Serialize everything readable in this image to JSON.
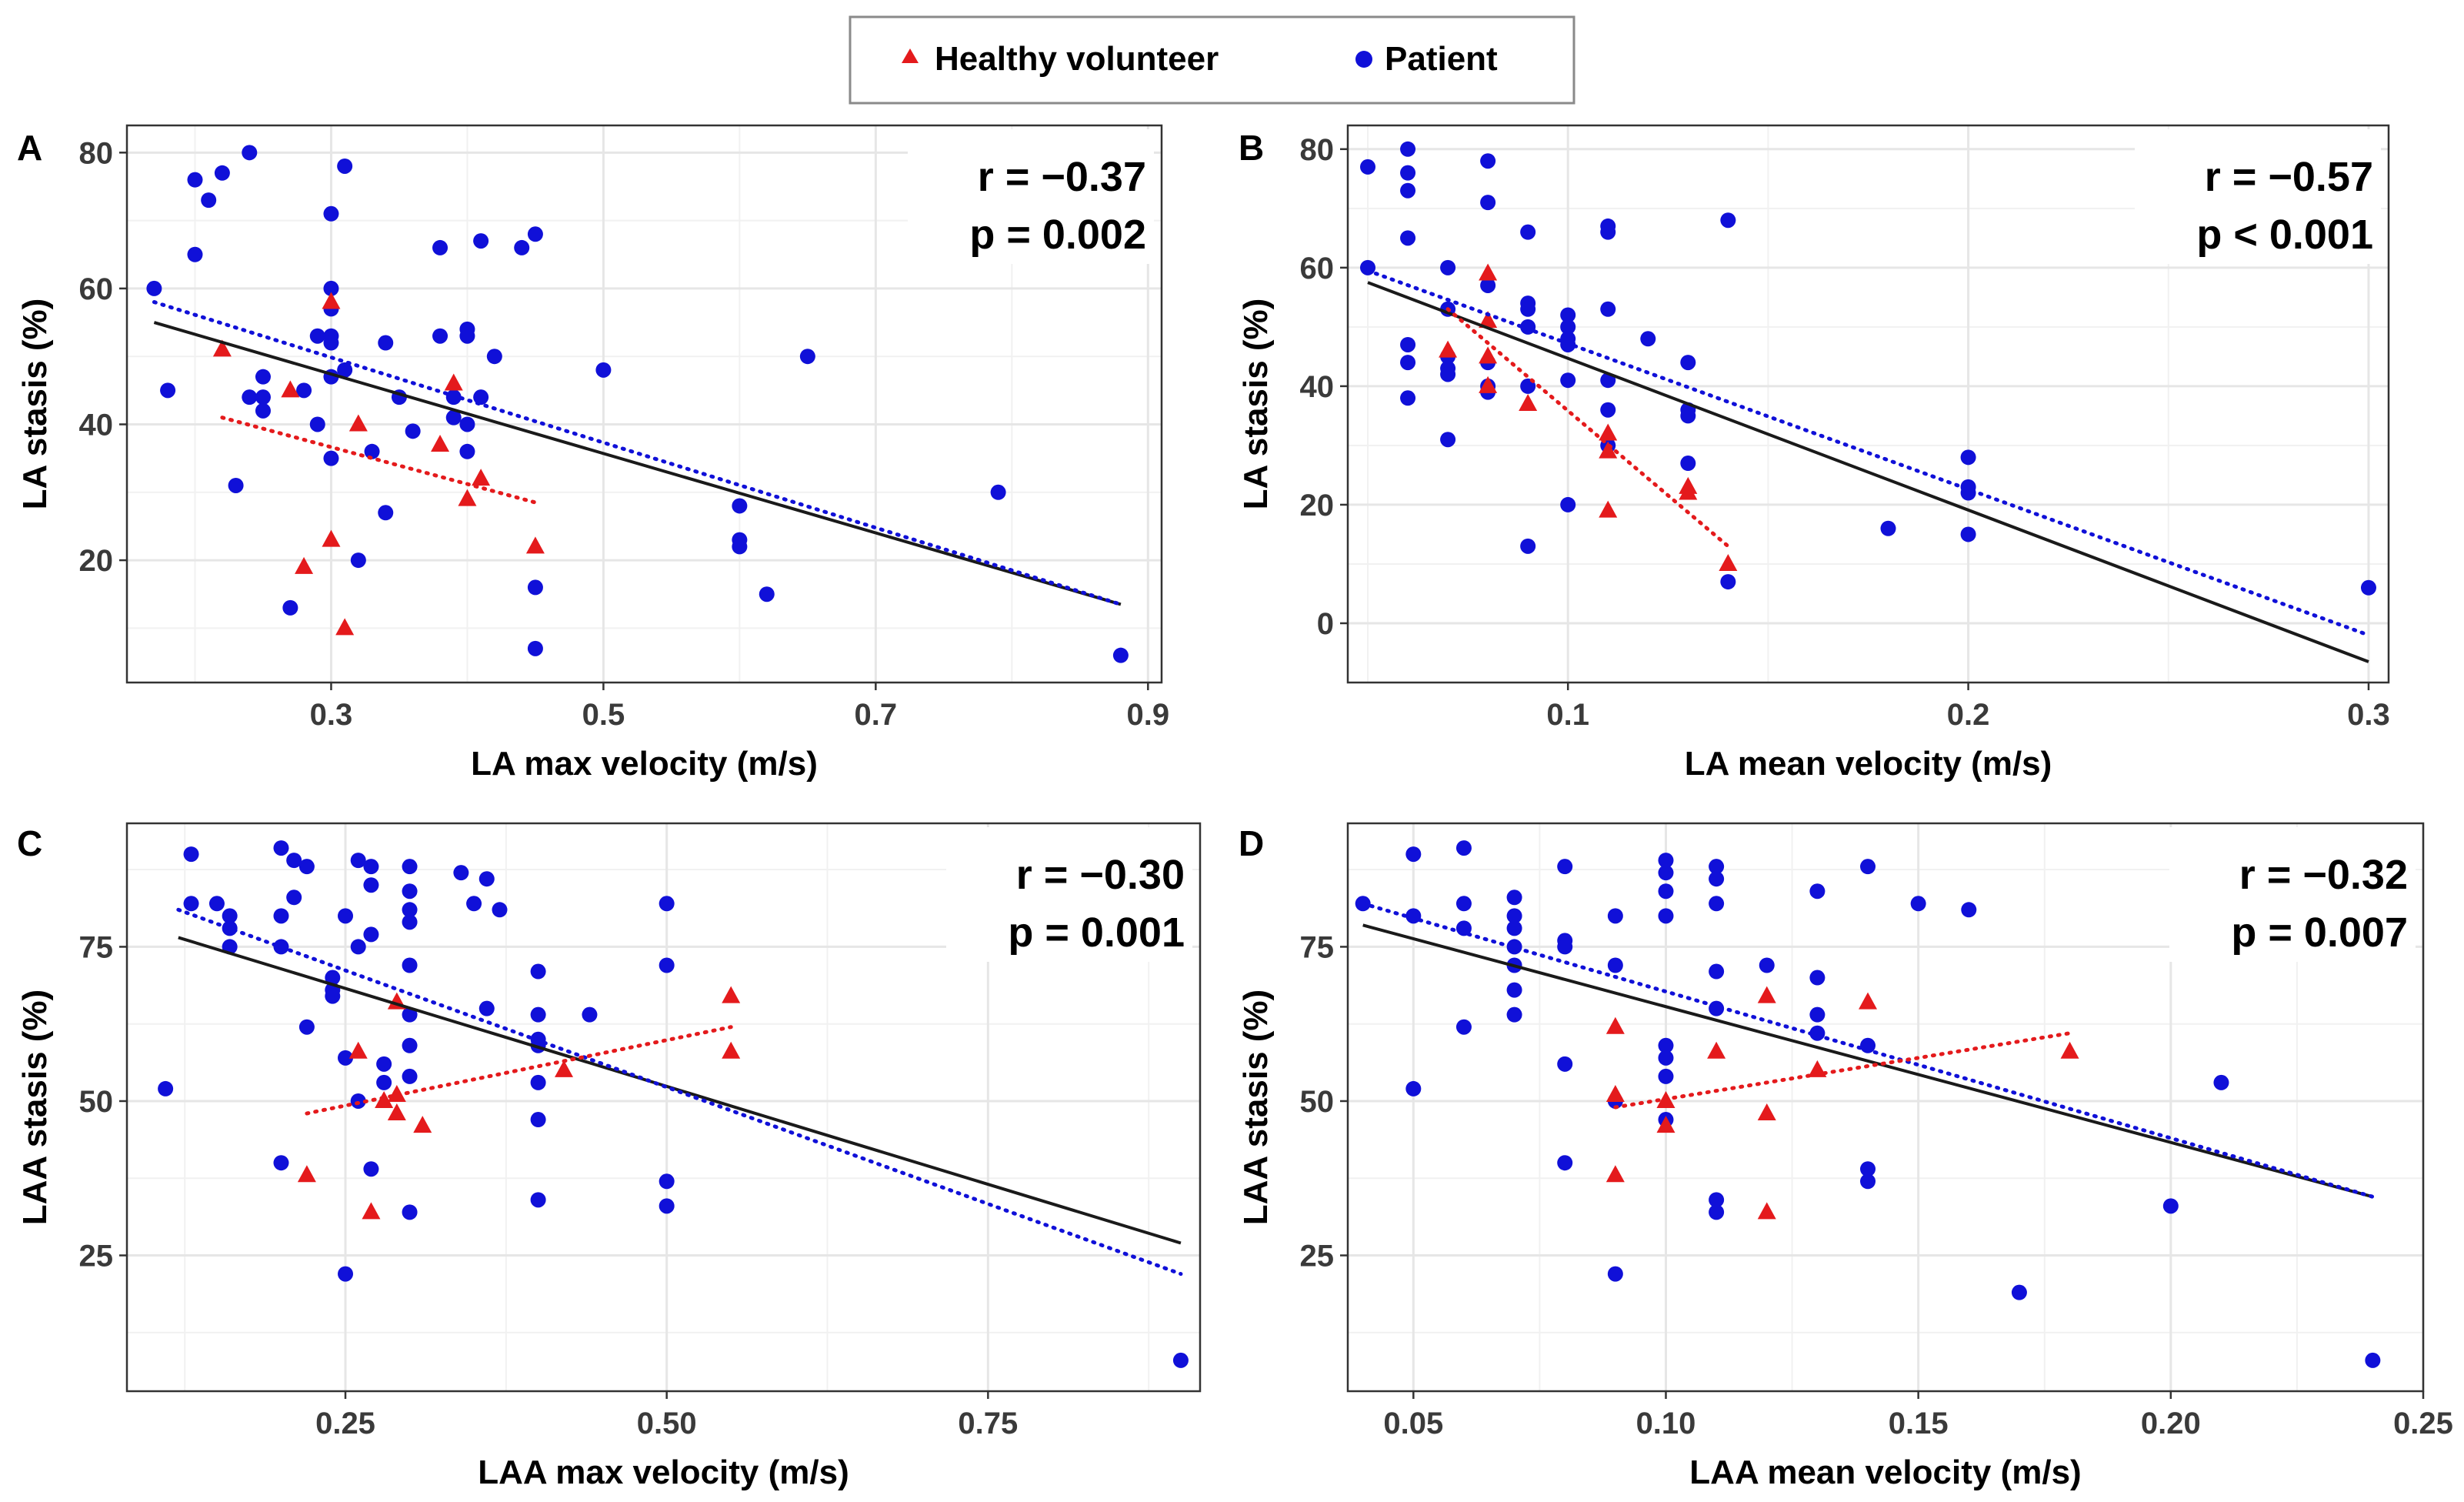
{
  "colors": {
    "healthy": "#e41a1c",
    "patient": "#1010d8",
    "overall_line": "#1a1a1a",
    "grid": "#e6e6e6",
    "panel_border": "#333333"
  },
  "legend": {
    "items": [
      {
        "key": "healthy",
        "label": "Healthy volunteer",
        "marker": "triangle"
      },
      {
        "key": "patient",
        "label": "Patient",
        "marker": "circle"
      }
    ]
  },
  "chart_data": [
    {
      "panel": "A",
      "type": "scatter",
      "xlabel": "LA max velocity (m/s)",
      "ylabel": "LA stasis (%)",
      "xlim": [
        0.15,
        0.91
      ],
      "ylim": [
        2,
        84
      ],
      "xticks": [
        0.3,
        0.5,
        0.7,
        0.9
      ],
      "xtick_labels": [
        "0.3",
        "0.5",
        "0.7",
        "0.9"
      ],
      "yticks": [
        20,
        40,
        60,
        80
      ],
      "ytick_labels": [
        "20",
        "40",
        "60",
        "80"
      ],
      "stat_r": "r = −0.37",
      "stat_p": "p = 0.002",
      "series": [
        {
          "name": "Healthy volunteer",
          "key": "healthy",
          "marker": "triangle",
          "x": [
            0.22,
            0.27,
            0.28,
            0.3,
            0.3,
            0.31,
            0.32,
            0.38,
            0.39,
            0.4,
            0.41,
            0.45
          ],
          "y": [
            51,
            45,
            19,
            58,
            23,
            10,
            40,
            37,
            46,
            29,
            32,
            22
          ]
        },
        {
          "name": "Patient",
          "key": "patient",
          "marker": "circle",
          "x": [
            0.17,
            0.18,
            0.2,
            0.2,
            0.21,
            0.22,
            0.23,
            0.24,
            0.24,
            0.25,
            0.25,
            0.25,
            0.27,
            0.28,
            0.29,
            0.29,
            0.3,
            0.3,
            0.3,
            0.3,
            0.3,
            0.3,
            0.3,
            0.31,
            0.31,
            0.32,
            0.33,
            0.34,
            0.34,
            0.35,
            0.36,
            0.38,
            0.38,
            0.39,
            0.39,
            0.4,
            0.4,
            0.4,
            0.4,
            0.41,
            0.41,
            0.42,
            0.44,
            0.45,
            0.45,
            0.45,
            0.5,
            0.6,
            0.6,
            0.6,
            0.62,
            0.65,
            0.79,
            0.88
          ],
          "y": [
            60,
            45,
            76,
            65,
            73,
            77,
            31,
            80,
            44,
            47,
            44,
            42,
            13,
            45,
            53,
            40,
            71,
            60,
            57,
            53,
            52,
            47,
            35,
            78,
            48,
            20,
            36,
            52,
            27,
            44,
            39,
            66,
            53,
            44,
            41,
            54,
            53,
            40,
            36,
            67,
            44,
            50,
            66,
            68,
            16,
            7,
            48,
            28,
            23,
            22,
            15,
            50,
            30,
            6
          ]
        }
      ],
      "trendlines": [
        {
          "key": "overall_line",
          "style": "solid",
          "x": [
            0.17,
            0.88
          ],
          "y": [
            55,
            13.5
          ]
        },
        {
          "key": "patient",
          "style": "dotted",
          "x": [
            0.17,
            0.88
          ],
          "y": [
            58,
            13.5
          ]
        },
        {
          "key": "healthy",
          "style": "dotted",
          "x": [
            0.22,
            0.45
          ],
          "y": [
            41,
            28.5
          ]
        }
      ]
    },
    {
      "panel": "B",
      "type": "scatter",
      "xlabel": "LA mean velocity (m/s)",
      "ylabel": "LA stasis (%)",
      "xlim": [
        0.045,
        0.305
      ],
      "ylim": [
        -10,
        84
      ],
      "xticks": [
        0.1,
        0.2,
        0.3
      ],
      "xtick_labels": [
        "0.1",
        "0.2",
        "0.3"
      ],
      "yticks": [
        0,
        20,
        40,
        60,
        80
      ],
      "ytick_labels": [
        "0",
        "20",
        "40",
        "60",
        "80"
      ],
      "stat_r": "r = −0.57",
      "stat_p": "p < 0.001",
      "series": [
        {
          "name": "Healthy volunteer",
          "key": "healthy",
          "marker": "triangle",
          "x": [
            0.07,
            0.08,
            0.08,
            0.08,
            0.08,
            0.09,
            0.11,
            0.11,
            0.11,
            0.13,
            0.13,
            0.14
          ],
          "y": [
            46,
            59,
            51,
            45,
            40,
            37,
            32,
            29,
            19,
            23,
            22,
            10
          ]
        },
        {
          "name": "Patient",
          "key": "patient",
          "marker": "circle",
          "x": [
            0.05,
            0.05,
            0.06,
            0.06,
            0.06,
            0.06,
            0.06,
            0.06,
            0.06,
            0.07,
            0.07,
            0.07,
            0.07,
            0.07,
            0.07,
            0.08,
            0.08,
            0.08,
            0.08,
            0.08,
            0.08,
            0.09,
            0.09,
            0.09,
            0.09,
            0.09,
            0.09,
            0.1,
            0.1,
            0.1,
            0.1,
            0.1,
            0.1,
            0.11,
            0.11,
            0.11,
            0.11,
            0.11,
            0.11,
            0.12,
            0.13,
            0.13,
            0.13,
            0.13,
            0.14,
            0.14,
            0.18,
            0.2,
            0.2,
            0.2,
            0.2,
            0.3
          ],
          "y": [
            77,
            60,
            80,
            76,
            73,
            65,
            47,
            44,
            38,
            60,
            53,
            45,
            43,
            42,
            31,
            78,
            71,
            57,
            44,
            40,
            39,
            66,
            54,
            53,
            50,
            40,
            13,
            52,
            50,
            48,
            47,
            41,
            20,
            67,
            66,
            53,
            41,
            36,
            30,
            48,
            44,
            36,
            35,
            27,
            68,
            7,
            16,
            28,
            23,
            22,
            15,
            6
          ]
        }
      ],
      "trendlines": [
        {
          "key": "overall_line",
          "style": "solid",
          "x": [
            0.05,
            0.3
          ],
          "y": [
            57.5,
            -6.5
          ]
        },
        {
          "key": "patient",
          "style": "dotted",
          "x": [
            0.05,
            0.3
          ],
          "y": [
            59.5,
            -2
          ]
        },
        {
          "key": "healthy",
          "style": "dotted",
          "x": [
            0.07,
            0.14
          ],
          "y": [
            53,
            13
          ]
        }
      ]
    },
    {
      "panel": "C",
      "type": "scatter",
      "xlabel": "LAA max velocity (m/s)",
      "ylabel": "LAA stasis (%)",
      "xlim": [
        0.08,
        0.915
      ],
      "ylim": [
        3,
        95
      ],
      "xticks": [
        0.25,
        0.5,
        0.75
      ],
      "xtick_labels": [
        "0.25",
        "0.50",
        "0.75"
      ],
      "yticks": [
        25,
        50,
        75
      ],
      "ytick_labels": [
        "25",
        "50",
        "75"
      ],
      "stat_r": "r = −0.30",
      "stat_p": "p = 0.001",
      "series": [
        {
          "name": "Healthy volunteer",
          "key": "healthy",
          "marker": "triangle",
          "x": [
            0.22,
            0.26,
            0.27,
            0.28,
            0.29,
            0.29,
            0.29,
            0.31,
            0.42,
            0.55,
            0.55
          ],
          "y": [
            38,
            58,
            32,
            50,
            66,
            51,
            48,
            46,
            55,
            67,
            58
          ]
        },
        {
          "name": "Patient",
          "key": "patient",
          "marker": "circle",
          "x": [
            0.11,
            0.13,
            0.13,
            0.15,
            0.16,
            0.16,
            0.16,
            0.2,
            0.2,
            0.2,
            0.2,
            0.21,
            0.21,
            0.22,
            0.22,
            0.24,
            0.24,
            0.24,
            0.25,
            0.25,
            0.25,
            0.26,
            0.26,
            0.26,
            0.27,
            0.27,
            0.27,
            0.27,
            0.28,
            0.28,
            0.3,
            0.3,
            0.3,
            0.3,
            0.3,
            0.3,
            0.3,
            0.3,
            0.3,
            0.34,
            0.35,
            0.36,
            0.36,
            0.37,
            0.4,
            0.4,
            0.4,
            0.4,
            0.4,
            0.4,
            0.4,
            0.44,
            0.5,
            0.5,
            0.5,
            0.5,
            0.9
          ],
          "y": [
            52,
            90,
            82,
            82,
            80,
            78,
            75,
            91,
            80,
            75,
            40,
            89,
            83,
            88,
            62,
            70,
            68,
            67,
            80,
            57,
            22,
            89,
            75,
            50,
            88,
            85,
            77,
            39,
            56,
            53,
            88,
            84,
            81,
            79,
            72,
            64,
            59,
            54,
            32,
            87,
            82,
            86,
            65,
            81,
            71,
            64,
            60,
            59,
            53,
            47,
            34,
            64,
            82,
            72,
            37,
            33,
            8
          ]
        }
      ],
      "trendlines": [
        {
          "key": "overall_line",
          "style": "solid",
          "x": [
            0.12,
            0.9
          ],
          "y": [
            76.5,
            27
          ]
        },
        {
          "key": "patient",
          "style": "dotted",
          "x": [
            0.12,
            0.9
          ],
          "y": [
            81,
            22
          ]
        },
        {
          "key": "healthy",
          "style": "dotted",
          "x": [
            0.22,
            0.55
          ],
          "y": [
            48,
            62
          ]
        }
      ]
    },
    {
      "panel": "D",
      "type": "scatter",
      "xlabel": "LAA mean velocity (m/s)",
      "ylabel": "LAA stasis (%)",
      "xlim": [
        0.037,
        0.25
      ],
      "ylim": [
        3,
        95
      ],
      "xticks": [
        0.05,
        0.1,
        0.15,
        0.2,
        0.25
      ],
      "xtick_labels": [
        "0.05",
        "0.10",
        "0.15",
        "0.20",
        "0.25"
      ],
      "yticks": [
        25,
        50,
        75
      ],
      "ytick_labels": [
        "25",
        "50",
        "75"
      ],
      "stat_r": "r = −0.32",
      "stat_p": "p = 0.007",
      "series": [
        {
          "name": "Healthy volunteer",
          "key": "healthy",
          "marker": "triangle",
          "x": [
            0.09,
            0.09,
            0.09,
            0.1,
            0.1,
            0.11,
            0.12,
            0.12,
            0.12,
            0.13,
            0.14,
            0.18
          ],
          "y": [
            62,
            51,
            38,
            50,
            46,
            58,
            67,
            48,
            32,
            55,
            66,
            58
          ]
        },
        {
          "name": "Patient",
          "key": "patient",
          "marker": "circle",
          "x": [
            0.04,
            0.05,
            0.05,
            0.05,
            0.06,
            0.06,
            0.06,
            0.06,
            0.07,
            0.07,
            0.07,
            0.07,
            0.07,
            0.07,
            0.07,
            0.08,
            0.08,
            0.08,
            0.08,
            0.08,
            0.09,
            0.09,
            0.09,
            0.09,
            0.1,
            0.1,
            0.1,
            0.1,
            0.1,
            0.1,
            0.1,
            0.1,
            0.11,
            0.11,
            0.11,
            0.11,
            0.11,
            0.11,
            0.11,
            0.12,
            0.13,
            0.13,
            0.13,
            0.13,
            0.14,
            0.14,
            0.14,
            0.14,
            0.15,
            0.16,
            0.17,
            0.2,
            0.21,
            0.24
          ],
          "y": [
            82,
            90,
            80,
            52,
            91,
            82,
            78,
            62,
            83,
            80,
            78,
            75,
            72,
            68,
            64,
            88,
            76,
            56,
            40,
            75,
            80,
            72,
            50,
            22,
            89,
            87,
            84,
            80,
            59,
            57,
            54,
            47,
            88,
            86,
            82,
            71,
            65,
            34,
            32,
            72,
            84,
            70,
            64,
            61,
            88,
            59,
            39,
            37,
            82,
            81,
            19,
            33,
            53,
            8
          ]
        }
      ],
      "trendlines": [
        {
          "key": "overall_line",
          "style": "solid",
          "x": [
            0.04,
            0.24
          ],
          "y": [
            78.5,
            34.5
          ]
        },
        {
          "key": "patient",
          "style": "dotted",
          "x": [
            0.04,
            0.24
          ],
          "y": [
            82,
            34.5
          ]
        },
        {
          "key": "healthy",
          "style": "dotted",
          "x": [
            0.09,
            0.18
          ],
          "y": [
            49,
            61
          ]
        }
      ]
    }
  ]
}
